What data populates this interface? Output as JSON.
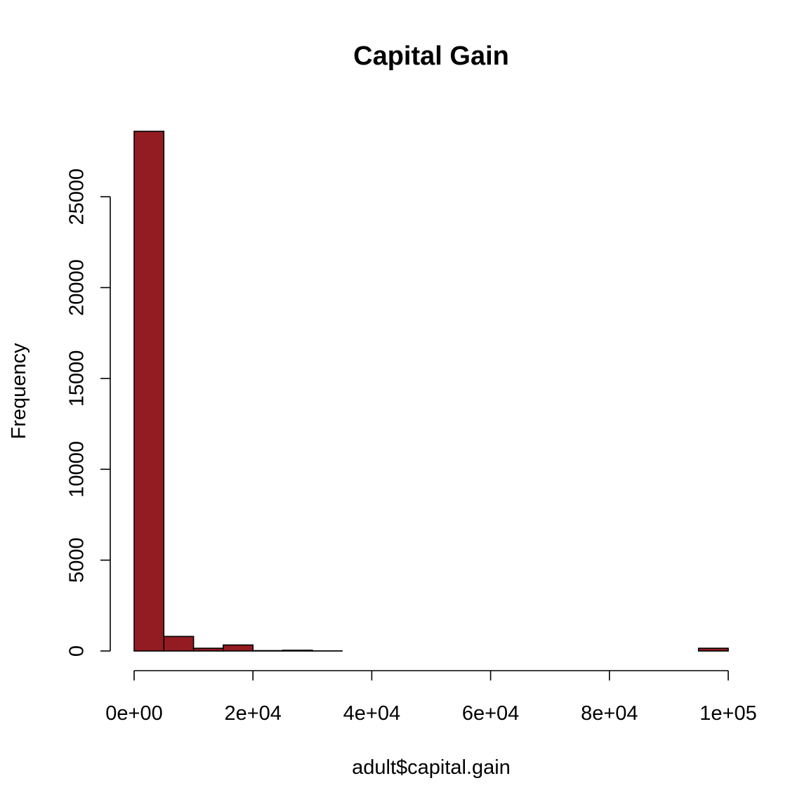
{
  "chart_data": {
    "type": "bar",
    "title": "Capital Gain",
    "xlabel": "adult$capital.gain",
    "ylabel": "Frequency",
    "bar_color": "#931C22",
    "bin_width": 5000,
    "x_bins_start": [
      0,
      5000,
      10000,
      15000,
      20000,
      25000,
      30000,
      35000,
      40000,
      45000,
      50000,
      55000,
      60000,
      65000,
      70000,
      75000,
      80000,
      85000,
      90000,
      95000
    ],
    "values": [
      28600,
      800,
      150,
      330,
      20,
      40,
      5,
      0,
      0,
      0,
      0,
      0,
      0,
      0,
      0,
      0,
      0,
      0,
      0,
      150
    ],
    "xlim": [
      0,
      100000
    ],
    "ylim": [
      0,
      28600
    ],
    "x_ticks": [
      0,
      20000,
      40000,
      60000,
      80000,
      100000
    ],
    "x_tick_labels": [
      "0e+00",
      "2e+04",
      "4e+04",
      "6e+04",
      "8e+04",
      "1e+05"
    ],
    "y_ticks": [
      0,
      5000,
      10000,
      15000,
      20000,
      25000
    ],
    "y_tick_labels": [
      "0",
      "5000",
      "10000",
      "15000",
      "20000",
      "25000"
    ],
    "grid": false
  }
}
